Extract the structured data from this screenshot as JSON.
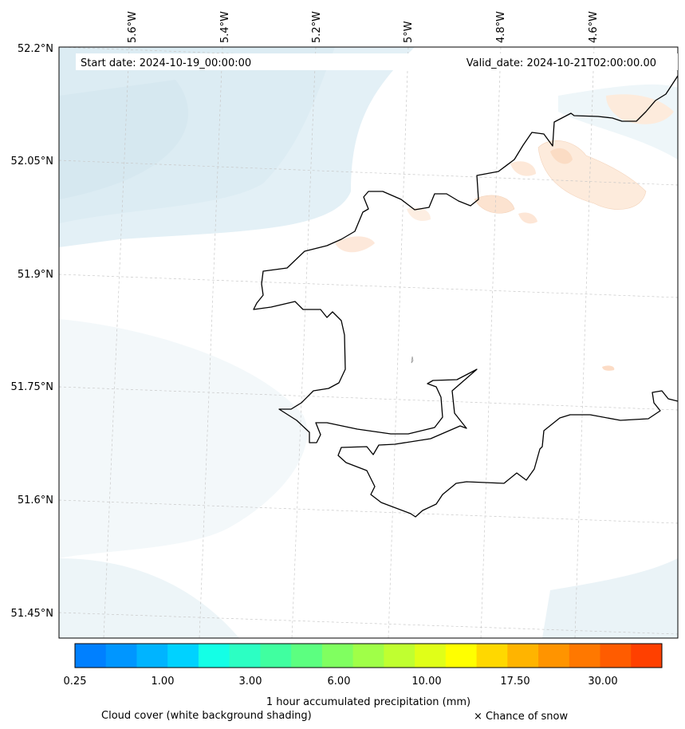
{
  "map": {
    "start_label": "Start date: 2024-10-19_00:00:00",
    "valid_label": "Valid_date: 2024-10-21T02:00:00.00",
    "lon_labels": [
      "5.6°W",
      "5.4°W",
      "5.2°W",
      "5°W",
      "4.8°W",
      "4.6°W"
    ],
    "lat_labels": [
      "52.2°N",
      "52.05°N",
      "51.9°N",
      "51.75°N",
      "51.6°N",
      "51.45°N"
    ]
  },
  "colorbar": {
    "tick_labels": [
      "0.25",
      "1.00",
      "3.00",
      "6.00",
      "10.00",
      "17.50",
      "30.00"
    ],
    "colors": [
      "#0080ff",
      "#0096ff",
      "#00b4ff",
      "#00d2ff",
      "#14ffe6",
      "#2cffc3",
      "#40ffa0",
      "#5cff80",
      "#80ff60",
      "#a0ff48",
      "#c0ff30",
      "#e0ff18",
      "#ffff00",
      "#ffd800",
      "#ffb400",
      "#ff9400",
      "#ff7800",
      "#ff5c00",
      "#ff4000"
    ],
    "title": "1 hour accumulated precipitation (mm)"
  },
  "legend": {
    "cloud_label": "Cloud cover (white background shading)",
    "snow_label": "× Chance of snow"
  }
}
